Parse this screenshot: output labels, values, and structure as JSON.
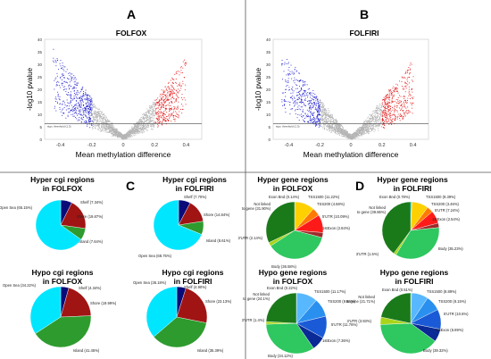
{
  "panels": {
    "A": {
      "letter": "A",
      "title": "FOLFOX"
    },
    "B": {
      "letter": "B",
      "title": "FOLFIRI"
    },
    "C": {
      "letter": "C"
    },
    "D": {
      "letter": "D"
    }
  },
  "volcano": {
    "xlabel": "Mean methylation difference",
    "ylabel": "-log10 pvalue",
    "x_ticks": [
      "-0.4",
      "-0.2",
      "0",
      "0.2",
      "0.4"
    ],
    "y_ticks": [
      "0",
      "5",
      "10",
      "15",
      "20",
      "25",
      "30",
      "35",
      "40"
    ],
    "threshold_label": "sign. threshold (1.3)",
    "colors": {
      "hypo": "#1f1fd0",
      "hyper": "#e41414",
      "ns": "#b4b4b4",
      "threshold": "#444444"
    }
  },
  "region_colors": {
    "Open Sea": "#00e6ff",
    "Shelf": "#0a0a78",
    "Shore": "#a01414",
    "Island": "#2e9b2e",
    "Exon Bnd": "#00e0ff",
    "TSS1500": "#ffd000",
    "TSS200": "#ff7a00",
    "5'UTR": "#ff1a1a",
    "1stExon": "#9e2a2a",
    "Body": "#2ec760",
    "3'UTR": "#a8d41a",
    "Not linked to gene": "#1a7a1a"
  },
  "hypo_gene_colors": {
    "Exon Bnd": "#00e0ff",
    "TSS1500": "#58b8ff",
    "TSS200": "#2a90ef",
    "5'UTR": "#1a5ad6",
    "1stExon": "#0a2a96",
    "Body": "#2ec760",
    "3'UTR": "#a8d41a",
    "Not linked to gene": "#1a7a1a"
  },
  "chart_data": [
    {
      "type": "scatter",
      "panel": "A",
      "title": "FOLFOX",
      "xlabel": "Mean methylation difference",
      "ylabel": "-log10 pvalue",
      "xlim": [
        -0.5,
        0.5
      ],
      "ylim": [
        0,
        40
      ],
      "threshold": 1.3,
      "series": [
        {
          "name": "hypo",
          "x_range": [
            -0.45,
            -0.2
          ]
        },
        {
          "name": "not significant"
        },
        {
          "name": "hyper",
          "x_range": [
            0.2,
            0.4
          ]
        }
      ]
    },
    {
      "type": "scatter",
      "panel": "B",
      "title": "FOLFIRI",
      "xlabel": "Mean methylation difference",
      "ylabel": "-log10 pvalue",
      "xlim": [
        -0.5,
        0.5
      ],
      "ylim": [
        0,
        40
      ],
      "threshold": 1.3,
      "series": [
        {
          "name": "hypo",
          "x_range": [
            -0.45,
            -0.2
          ]
        },
        {
          "name": "not significant"
        },
        {
          "name": "hyper",
          "x_range": [
            0.2,
            0.4
          ]
        }
      ]
    },
    {
      "type": "pie",
      "title_lines": [
        "Hyper cgi regions",
        "in FOLFOX"
      ],
      "slices": [
        {
          "label": "Shelf",
          "value": 7.34,
          "text": "Shelf (7.34%)"
        },
        {
          "label": "Shore",
          "value": 19.87,
          "text": "Shore (19.87%)"
        },
        {
          "label": "Island",
          "value": 7.64,
          "text": "Island (7.64%)"
        },
        {
          "label": "Open Sea",
          "value": 65.15,
          "text": "Open Sea (65.15%)"
        }
      ]
    },
    {
      "type": "pie",
      "title_lines": [
        "Hyper cgi regions",
        "in FOLFIRI"
      ],
      "slices": [
        {
          "label": "Shelf",
          "value": 7.7,
          "text": "Shelf (7.70%)"
        },
        {
          "label": "Shore",
          "value": 14.84,
          "text": "Shore (14.84%)"
        },
        {
          "label": "Island",
          "value": 8.61,
          "text": "Island (8.61%)"
        },
        {
          "label": "Open Sea",
          "value": 68.75,
          "text": "Open Sea (68.75%)"
        }
      ]
    },
    {
      "type": "pie",
      "title_lines": [
        "Hypo cgi regions",
        "in FOLFOX"
      ],
      "slices": [
        {
          "label": "Shelf",
          "value": 4.34,
          "text": "Shelf (4.34%)"
        },
        {
          "label": "Shore",
          "value": 19.99,
          "text": "Shore (19.99%)"
        },
        {
          "label": "Island",
          "value": 41.45,
          "text": "Island (41.45%)"
        },
        {
          "label": "Open Sea",
          "value": 34.22,
          "text": "Open Sea (34.22%)"
        }
      ]
    },
    {
      "type": "pie",
      "title_lines": [
        "Hypo cgi regions",
        "in FOLFIRI"
      ],
      "slices": [
        {
          "label": "Shelf",
          "value": 4.9,
          "text": "Shelf (4.90%)"
        },
        {
          "label": "Shore",
          "value": 23.13,
          "text": "Shore (23.13%)"
        },
        {
          "label": "Island",
          "value": 35.39,
          "text": "Island (35.39%)"
        },
        {
          "label": "Open Sea",
          "value": 36.18,
          "text": "Open Sea (36.18%)"
        }
      ]
    },
    {
      "type": "pie",
      "title_lines": [
        "Hyper gene regions",
        "in FOLFOX"
      ],
      "slices": [
        {
          "label": "Exon Bnd",
          "value": 0.14,
          "text": "Exon Bnd (0.14%)"
        },
        {
          "label": "TSS1500",
          "value": 11.22,
          "text": "TSS1500 (11.22%)"
        },
        {
          "label": "TSS200",
          "value": 4.68,
          "text": "TSS200 (4.68%)"
        },
        {
          "label": "5'UTR",
          "value": 10.09,
          "text": "5'UTR (10.09%)"
        },
        {
          "label": "1stExon",
          "value": 2.84,
          "text": "1stExon (2.84%)"
        },
        {
          "label": "Body",
          "value": 36.58,
          "text": "Body (36.58%)"
        },
        {
          "label": "3'UTR",
          "value": 2.14,
          "text": "3'UTR (2.14%)"
        },
        {
          "label": "Not linked to gene",
          "value": 31.9,
          "text": "Not linked to gene (31.90%)"
        }
      ]
    },
    {
      "type": "pie",
      "title_lines": [
        "Hyper gene regions",
        "in FOLFIRI"
      ],
      "slices": [
        {
          "label": "Exon Bnd",
          "value": 0.78,
          "text": "Exon Bnd (0.78%)"
        },
        {
          "label": "TSS1500",
          "value": 9.39,
          "text": "TSS1500 (9.39%)"
        },
        {
          "label": "TSS200",
          "value": 3.46,
          "text": "TSS200 (3.46%)"
        },
        {
          "label": "5'UTR",
          "value": 7.24,
          "text": "5'UTR (7.24%)"
        },
        {
          "label": "1stExon",
          "value": 2.54,
          "text": "1stExon (2.54%)"
        },
        {
          "label": "Body",
          "value": 35.23,
          "text": "Body (35.23%)"
        },
        {
          "label": "3'UTR",
          "value": 1.5,
          "text": "3'UTR (1.5%)"
        },
        {
          "label": "Not linked to gene",
          "value": 39.86,
          "text": "Not linked to gene (39.86%)"
        }
      ]
    },
    {
      "type": "pie",
      "title_lines": [
        "Hypo gene regions",
        "in FOLFOX"
      ],
      "slices": [
        {
          "label": "Exon Bnd",
          "value": 0.22,
          "text": "Exon Bnd (0.22%)"
        },
        {
          "label": "TSS1500",
          "value": 11.17,
          "text": "TSS1500 (11.17%)"
        },
        {
          "label": "TSS200",
          "value": 9.86,
          "text": "TSS200 (9.86%)"
        },
        {
          "label": "5'UTR",
          "value": 11.76,
          "text": "5'UTR (11.76%)"
        },
        {
          "label": "1stExon",
          "value": 7.36,
          "text": "1stExon (7.36%)"
        },
        {
          "label": "Body",
          "value": 34.12,
          "text": "Body (34.12%)"
        },
        {
          "label": "3'UTR",
          "value": 1.4,
          "text": "3'UTR (1.4%)"
        },
        {
          "label": "Not linked to gene",
          "value": 24.1,
          "text": "Not linked to gene (24.1%)"
        }
      ]
    },
    {
      "type": "pie",
      "title_lines": [
        "Hypo gene regions",
        "in FOLFIRI"
      ],
      "slices": [
        {
          "label": "Exon Bnd",
          "value": 0.51,
          "text": "Exon Bnd (0.51%)"
        },
        {
          "label": "TSS1500",
          "value": 8.89,
          "text": "TSS1500 (8.89%)"
        },
        {
          "label": "TSS200",
          "value": 8.15,
          "text": "TSS200 (8.15%)"
        },
        {
          "label": "5'UTR",
          "value": 10.6,
          "text": "5'UTR (10.6%)"
        },
        {
          "label": "1stExon",
          "value": 6.89,
          "text": "1stExon (6.89%)"
        },
        {
          "label": "Body",
          "value": 39.32,
          "text": "Body (39.32%)"
        },
        {
          "label": "3'UTR",
          "value": 3.93,
          "text": "3'UTR (3.93%)"
        },
        {
          "label": "Not linked to gene",
          "value": 21.71,
          "text": "Not linked to gene (21.71%)"
        }
      ]
    }
  ]
}
